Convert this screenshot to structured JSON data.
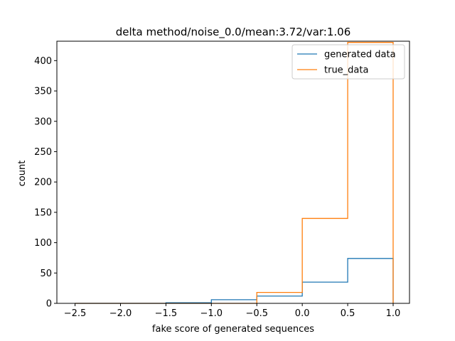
{
  "chart_data": {
    "type": "histogram",
    "title": "delta method/noise_0.0/mean:3.72/var:1.06",
    "xlabel": "fake score of generated sequences",
    "ylabel": "count",
    "xlim": [
      -2.7,
      1.18
    ],
    "ylim": [
      0,
      432
    ],
    "x_ticks": [
      -2.5,
      -2.0,
      -1.5,
      -1.0,
      -0.5,
      0.0,
      0.5,
      1.0
    ],
    "x_tick_labels": [
      "−2.5",
      "−2.0",
      "−1.5",
      "−1.0",
      "−0.5",
      "0.0",
      "0.5",
      "1.0"
    ],
    "y_ticks": [
      0,
      50,
      100,
      150,
      200,
      250,
      300,
      350,
      400
    ],
    "y_tick_labels": [
      "0",
      "50",
      "100",
      "150",
      "200",
      "250",
      "300",
      "350",
      "400"
    ],
    "bin_edges": [
      -2.5,
      -2.0,
      -1.5,
      -1.0,
      -0.5,
      0.0,
      0.5,
      1.0
    ],
    "legend_position": "top-right",
    "series": [
      {
        "name": "generated data",
        "color": "#1f77b4",
        "counts": [
          0,
          0,
          1,
          6,
          12,
          35,
          74
        ]
      },
      {
        "name": "true_data",
        "color": "#ff7f0e",
        "counts": [
          0,
          0,
          0,
          0,
          18,
          140,
          430
        ]
      }
    ]
  }
}
